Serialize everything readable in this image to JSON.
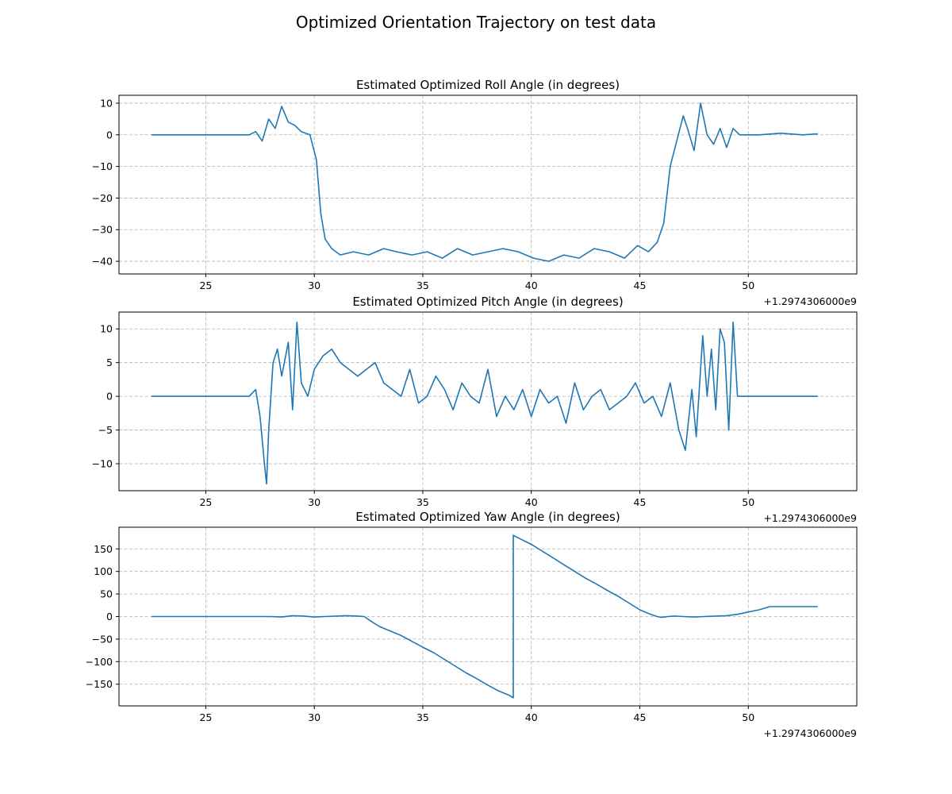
{
  "figure": {
    "title": "Optimized Orientation Trajectory on test data",
    "x_offset_label": "+1.2974306000e9",
    "line_color": "#1f77b4"
  },
  "chart_data": [
    {
      "type": "line",
      "title": "Estimated Optimized Roll Angle (in degrees)",
      "xlabel": "",
      "ylabel": "",
      "grid": true,
      "xlim": [
        21,
        55
      ],
      "ylim": [
        -44,
        12.5
      ],
      "x_ticks": [
        25,
        30,
        35,
        40,
        45,
        50
      ],
      "x_tick_labels": [
        "25",
        "30",
        "35",
        "40",
        "45",
        "50"
      ],
      "y_ticks": [
        10,
        0,
        -10,
        -20,
        -30,
        -40
      ],
      "y_tick_labels": [
        "10",
        "0",
        "−10",
        "−20",
        "−30",
        "−40"
      ],
      "x": [
        22.5,
        27.0,
        27.3,
        27.6,
        27.9,
        28.2,
        28.5,
        28.8,
        29.1,
        29.4,
        29.8,
        30.1,
        30.3,
        30.5,
        30.8,
        31.2,
        31.8,
        32.5,
        33.2,
        33.8,
        34.5,
        35.2,
        35.9,
        36.6,
        37.3,
        38.0,
        38.7,
        39.4,
        40.1,
        40.8,
        41.5,
        42.2,
        42.9,
        43.6,
        44.3,
        44.9,
        45.4,
        45.8,
        46.1,
        46.4,
        46.7,
        47.0,
        47.2,
        47.5,
        47.8,
        48.1,
        48.4,
        48.7,
        49.0,
        49.3,
        49.6,
        50.5,
        51.5,
        52.5,
        53.2
      ],
      "y": [
        0,
        0,
        1,
        -2,
        5,
        2,
        9,
        4,
        3,
        1,
        0,
        -8,
        -25,
        -33,
        -36,
        -38,
        -37,
        -38,
        -36,
        -37,
        -38,
        -37,
        -39,
        -36,
        -38,
        -37,
        -36,
        -37,
        -39,
        -40,
        -38,
        -39,
        -36,
        -37,
        -39,
        -35,
        -37,
        -34,
        -28,
        -10,
        -2,
        6,
        2,
        -5,
        10,
        0,
        -3,
        2,
        -4,
        2,
        0,
        0,
        0.5,
        0,
        0.3
      ],
      "series": [
        {
          "name": ""
        }
      ]
    },
    {
      "type": "line",
      "title": "Estimated Optimized Pitch Angle (in degrees)",
      "xlabel": "",
      "ylabel": "",
      "grid": true,
      "xlim": [
        21,
        55
      ],
      "ylim": [
        -14,
        12.5
      ],
      "x_ticks": [
        25,
        30,
        35,
        40,
        45,
        50
      ],
      "x_tick_labels": [
        "25",
        "30",
        "35",
        "40",
        "45",
        "50"
      ],
      "y_ticks": [
        10,
        5,
        0,
        -5,
        -10
      ],
      "y_tick_labels": [
        "10",
        "5",
        "0",
        "−5",
        "−10"
      ],
      "x": [
        22.5,
        27.0,
        27.3,
        27.5,
        27.7,
        27.8,
        27.9,
        28.1,
        28.3,
        28.5,
        28.8,
        29.0,
        29.2,
        29.4,
        29.7,
        30.0,
        30.4,
        30.8,
        31.2,
        31.6,
        32.0,
        32.4,
        32.8,
        33.2,
        33.6,
        34.0,
        34.4,
        34.8,
        35.2,
        35.6,
        36.0,
        36.4,
        36.8,
        37.2,
        37.6,
        38.0,
        38.4,
        38.8,
        39.2,
        39.6,
        40.0,
        40.4,
        40.8,
        41.2,
        41.6,
        42.0,
        42.4,
        42.8,
        43.2,
        43.6,
        44.0,
        44.4,
        44.8,
        45.2,
        45.6,
        46.0,
        46.4,
        46.8,
        47.1,
        47.4,
        47.6,
        47.9,
        48.1,
        48.3,
        48.5,
        48.7,
        48.9,
        49.1,
        49.3,
        49.5,
        50.5,
        51.5,
        52.5,
        53.2
      ],
      "y": [
        0,
        0,
        1,
        -3,
        -10,
        -13,
        -5,
        5,
        7,
        3,
        8,
        -2,
        11,
        2,
        0,
        4,
        6,
        7,
        5,
        4,
        3,
        4,
        5,
        2,
        1,
        0,
        4,
        -1,
        0,
        3,
        1,
        -2,
        2,
        0,
        -1,
        4,
        -3,
        0,
        -2,
        1,
        -3,
        1,
        -1,
        0,
        -4,
        2,
        -2,
        0,
        1,
        -2,
        -1,
        0,
        2,
        -1,
        0,
        -3,
        2,
        -5,
        -8,
        1,
        -6,
        9,
        0,
        7,
        -2,
        10,
        8,
        -5,
        11,
        0,
        0,
        0,
        0,
        0
      ],
      "series": [
        {
          "name": ""
        }
      ]
    },
    {
      "type": "line",
      "title": "Estimated Optimized Yaw Angle (in degrees)",
      "xlabel": "",
      "ylabel": "",
      "grid": true,
      "xlim": [
        21,
        55
      ],
      "ylim": [
        -198,
        198
      ],
      "x_ticks": [
        25,
        30,
        35,
        40,
        45,
        50
      ],
      "x_tick_labels": [
        "25",
        "30",
        "35",
        "40",
        "45",
        "50"
      ],
      "y_ticks": [
        150,
        100,
        50,
        0,
        -50,
        -100,
        -150
      ],
      "y_tick_labels": [
        "150",
        "100",
        "50",
        "0",
        "−50",
        "−100",
        "−150"
      ],
      "x": [
        22.5,
        28.0,
        28.5,
        29.0,
        29.5,
        30.0,
        30.5,
        31.0,
        31.5,
        32.0,
        32.3,
        32.6,
        33.0,
        33.5,
        34.0,
        34.5,
        35.0,
        35.5,
        36.0,
        36.5,
        37.0,
        37.5,
        38.0,
        38.5,
        39.0,
        39.17,
        39.17,
        39.5,
        40.0,
        40.5,
        41.0,
        41.5,
        42.0,
        42.5,
        43.0,
        43.5,
        44.0,
        44.5,
        45.0,
        45.5,
        45.8,
        46.0,
        46.3,
        46.6,
        47.0,
        47.5,
        48.0,
        48.5,
        49.0,
        49.5,
        50.0,
        50.5,
        51.0,
        52.0,
        53.2
      ],
      "y": [
        0,
        0,
        -1,
        2,
        1,
        -1,
        0,
        1,
        2,
        1,
        0,
        -10,
        -22,
        -32,
        -42,
        -55,
        -68,
        -80,
        -95,
        -110,
        -125,
        -138,
        -152,
        -165,
        -175,
        -180,
        180,
        172,
        160,
        145,
        130,
        115,
        100,
        85,
        72,
        58,
        45,
        30,
        15,
        5,
        0,
        -2,
        0,
        1,
        0,
        -1,
        0,
        1,
        2,
        5,
        10,
        15,
        22,
        22,
        22
      ],
      "series": [
        {
          "name": ""
        }
      ]
    }
  ]
}
